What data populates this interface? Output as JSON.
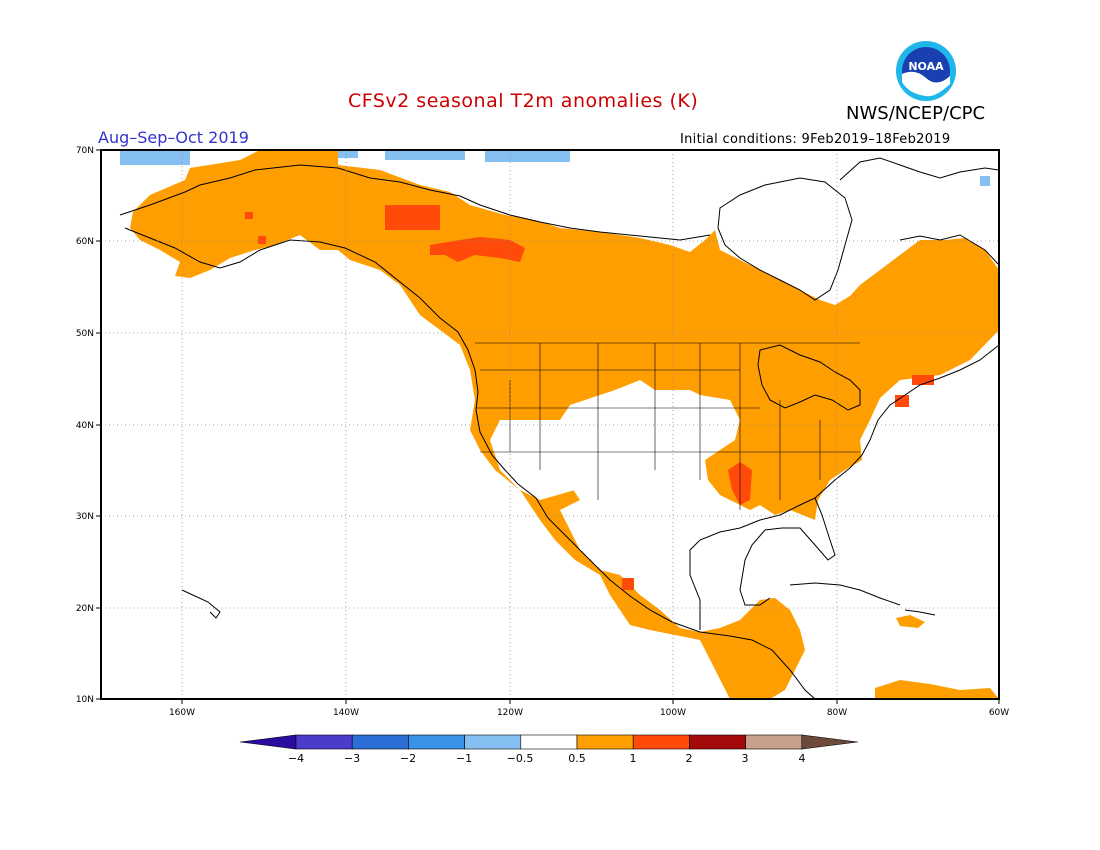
{
  "title": "CFSv2 seasonal T2m anomalies (K)",
  "agency": "NWS/NCEP/CPC",
  "logo_text": "NOAA",
  "period": "Aug–Sep–Oct 2019",
  "initial_conditions": "Initial conditions: 9Feb2019–18Feb2019",
  "colors": {
    "title": "#cc0000",
    "period": "#3333cc",
    "coast": "#000000",
    "grid": "#888888"
  },
  "lat_ticks": [
    "70N",
    "60N",
    "50N",
    "40N",
    "30N",
    "20N",
    "10N"
  ],
  "lon_ticks": [
    "160W",
    "140W",
    "120W",
    "100W",
    "80W",
    "60W"
  ],
  "colorbar": {
    "labels": [
      "−4",
      "−3",
      "−2",
      "−1",
      "−0.5",
      "0.5",
      "1",
      "2",
      "3",
      "4"
    ],
    "colors": [
      "#2a0ca0",
      "#4b3ccc",
      "#2c6fd6",
      "#3a92e8",
      "#86c0f2",
      "#ffffff",
      "#ff9e00",
      "#ff4a0a",
      "#a40a0a",
      "#c8a08c",
      "#6e4a3c"
    ]
  },
  "anomaly_legend_levels_K": [
    -4,
    -3,
    -2,
    -1,
    -0.5,
    0.5,
    1,
    2,
    3,
    4
  ]
}
